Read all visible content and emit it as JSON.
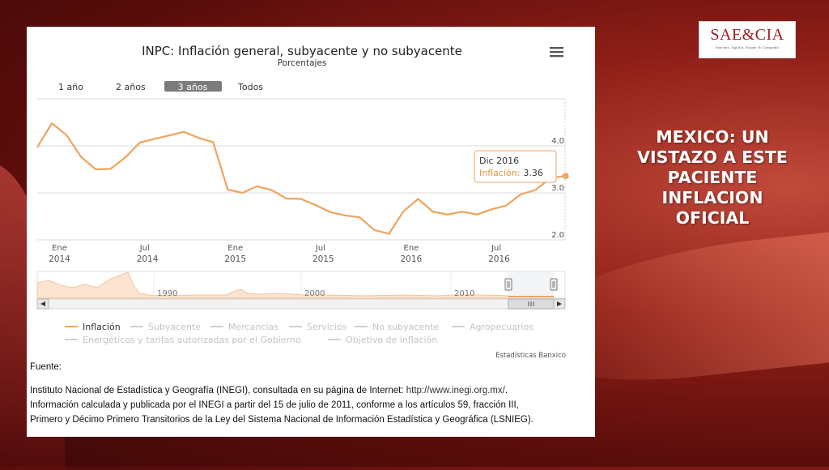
{
  "slide": {
    "title": "MEXICO: UN VISTAZO A ESTE PACIENTE INFLACION OFICIAL",
    "logo_main": "SAE&CIA",
    "logo_sub": "Sanchez, Aguilar, Esquer & Compañía"
  },
  "chart_header": {
    "title": "INPC: Inflación general, subyacente y no subyacente",
    "subtitle": "Porcentajes"
  },
  "range_buttons": [
    "1 año",
    "2 años",
    "3 años",
    "Todos"
  ],
  "range_selected": "3 años",
  "tooltip": {
    "date": "Dic 2016",
    "label": "Inflación:",
    "value": "3.36"
  },
  "navigator_years": [
    "1990",
    "2000",
    "2010"
  ],
  "legend": [
    {
      "label": "Inflación",
      "active": true
    },
    {
      "label": "Subyacente",
      "active": false
    },
    {
      "label": "Mercancías",
      "active": false
    },
    {
      "label": "Servicios",
      "active": false
    },
    {
      "label": "No subyacente",
      "active": false
    },
    {
      "label": "Agropecuarios",
      "active": false
    },
    {
      "label": "Energéticos y tarifas autorizadas por el Gobierno",
      "active": false
    },
    {
      "label": "Objetivo de inflación",
      "active": false
    }
  ],
  "credits": "Estadísticas Banxico",
  "source": {
    "heading": "Fuente:",
    "line1": "Instituto Nacional de Estadística y Geografía (INEGI), consultada en su página de Internet: ",
    "url": "http://www.inegi.org.mx/",
    "line1_end": ".",
    "line2": "Información calculada y publicada por el INEGI a partir del 15 de julio de 2011, conforme a los artículos 59, fracción III,",
    "line3": "Primero y Décimo Primero Transitorios de la Ley del Sistema Nacional de Información Estadística y Geográfica (LSNIEG)."
  },
  "colors": {
    "series": "#f0a35e",
    "accent": "#9c1f24",
    "selected_button": "#7b7b7b"
  },
  "chart_data": {
    "type": "line",
    "title": "INPC: Inflación general, subyacente y no subyacente",
    "subtitle": "Porcentajes",
    "ylim": [
      2.0,
      5.0
    ],
    "y_ticks": [
      "4.0",
      "3.0",
      "2.0"
    ],
    "x_ticks": [
      {
        "month": "Ene",
        "year": "2014"
      },
      {
        "month": "Jul",
        "year": "2014"
      },
      {
        "month": "Ene",
        "year": "2015"
      },
      {
        "month": "Jul",
        "year": "2015"
      },
      {
        "month": "Ene",
        "year": "2016"
      },
      {
        "month": "Jul",
        "year": "2016"
      }
    ],
    "x_start": "2013-12",
    "grid": true,
    "series": [
      {
        "name": "Inflación",
        "x": [
          "2013-12",
          "2014-01",
          "2014-02",
          "2014-03",
          "2014-04",
          "2014-05",
          "2014-06",
          "2014-07",
          "2014-08",
          "2014-09",
          "2014-10",
          "2014-11",
          "2014-12",
          "2015-01",
          "2015-02",
          "2015-03",
          "2015-04",
          "2015-05",
          "2015-06",
          "2015-07",
          "2015-08",
          "2015-09",
          "2015-10",
          "2015-11",
          "2015-12",
          "2016-01",
          "2016-02",
          "2016-03",
          "2016-04",
          "2016-05",
          "2016-06",
          "2016-07",
          "2016-08",
          "2016-09",
          "2016-10",
          "2016-11",
          "2016-12"
        ],
        "values": [
          3.97,
          4.48,
          4.23,
          3.76,
          3.5,
          3.51,
          3.75,
          4.07,
          4.15,
          4.22,
          4.3,
          4.17,
          4.08,
          3.07,
          3.0,
          3.14,
          3.06,
          2.88,
          2.87,
          2.74,
          2.59,
          2.52,
          2.48,
          2.21,
          2.13,
          2.61,
          2.87,
          2.6,
          2.54,
          2.6,
          2.54,
          2.65,
          2.73,
          2.97,
          3.06,
          3.31,
          3.36
        ]
      }
    ],
    "legend_position": "bottom"
  }
}
